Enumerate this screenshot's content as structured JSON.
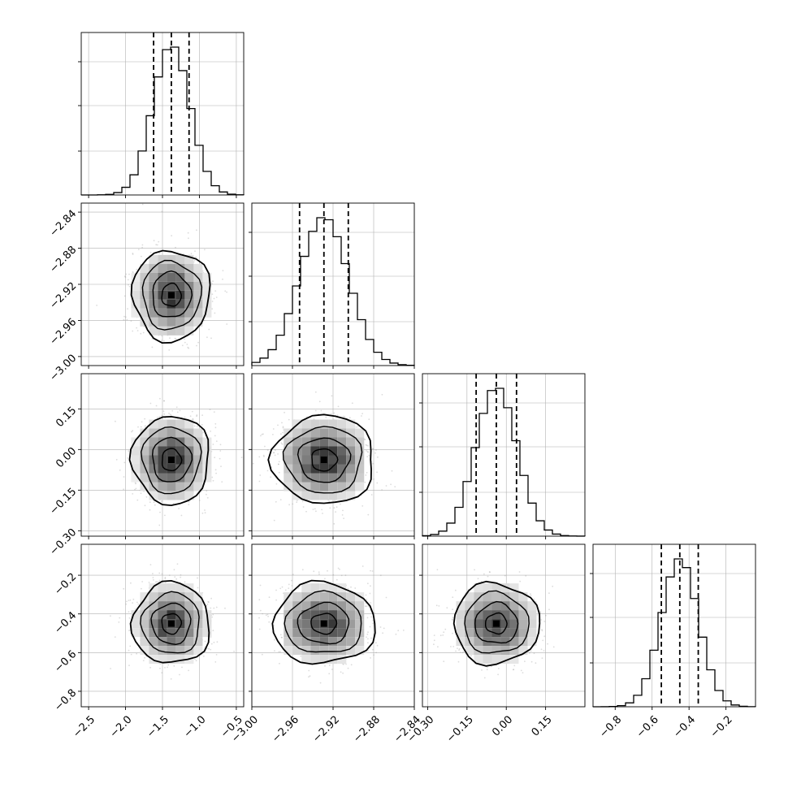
{
  "chart_data": {
    "type": "corner",
    "parameters": [
      {
        "histogram": {
          "range": [
            -2.6,
            -0.4
          ],
          "quantiles": [
            -1.62,
            -1.38,
            -1.14
          ],
          "mean": -1.38,
          "sd": 0.25,
          "bins": 20
        },
        "ticks": [
          "-2.5",
          "-2.0",
          "-1.5",
          "-1.0",
          "-0.5"
        ]
      },
      {
        "histogram": {
          "range": [
            -3.0,
            -2.84
          ],
          "quantiles": [
            -2.953,
            -2.929,
            -2.905
          ],
          "mean": -2.929,
          "sd": 0.024,
          "bins": 20
        },
        "ticks": [
          "-3.00",
          "-2.96",
          "-2.92",
          "-2.88",
          "-2.84"
        ],
        "y_ticks": [
          "-2.84",
          "-2.88",
          "-2.92",
          "-2.96",
          "-3.00"
        ]
      },
      {
        "histogram": {
          "range": [
            -0.32,
            0.3
          ],
          "quantiles": [
            -0.115,
            -0.038,
            0.039
          ],
          "mean": -0.038,
          "sd": 0.078,
          "bins": 20
        },
        "ticks": [
          "-0.30",
          "-0.15",
          "0.00",
          "0.15"
        ],
        "y_ticks": [
          "0.15",
          "0.00",
          "-0.15",
          "-0.30"
        ]
      },
      {
        "histogram": {
          "range": [
            -0.92,
            -0.04
          ],
          "quantiles": [
            -0.55,
            -0.45,
            -0.35
          ],
          "mean": -0.45,
          "sd": 0.1,
          "bins": 20
        },
        "ticks": [
          "-0.8",
          "-0.6",
          "-0.4",
          "-0.2"
        ],
        "y_ticks": [
          "-0.2",
          "-0.4",
          "-0.6",
          "-0.8"
        ]
      }
    ],
    "joint_panels": [
      {
        "row": 1,
        "col": 0,
        "x_range": [
          -2.6,
          -0.4
        ],
        "y_range": [
          -3.01,
          -2.83
        ],
        "center": [
          -1.38,
          -2.932
        ]
      },
      {
        "row": 2,
        "col": 0,
        "x_range": [
          -2.6,
          -0.4
        ],
        "y_range": [
          -0.32,
          0.28
        ],
        "center": [
          -1.38,
          -0.038
        ]
      },
      {
        "row": 2,
        "col": 1,
        "x_range": [
          -3.0,
          -2.84
        ],
        "y_range": [
          -0.32,
          0.28
        ],
        "center": [
          -2.929,
          -0.038
        ]
      },
      {
        "row": 3,
        "col": 0,
        "x_range": [
          -2.6,
          -0.4
        ],
        "y_range": [
          -0.88,
          -0.04
        ],
        "center": [
          -1.38,
          -0.45
        ]
      },
      {
        "row": 3,
        "col": 1,
        "x_range": [
          -3.0,
          -2.84
        ],
        "y_range": [
          -0.88,
          -0.04
        ],
        "center": [
          -2.929,
          -0.45
        ]
      },
      {
        "row": 3,
        "col": 2,
        "x_range": [
          -0.32,
          0.3
        ],
        "y_range": [
          -0.88,
          -0.04
        ],
        "center": [
          -0.038,
          -0.45
        ]
      }
    ],
    "contour_levels_sigma": [
      0.5,
      1.0,
      1.5,
      2.0
    ],
    "grid": true,
    "colors": {
      "line": "#000000",
      "scatter": "#9a9a9a",
      "grid": "#b0b0b0"
    }
  }
}
